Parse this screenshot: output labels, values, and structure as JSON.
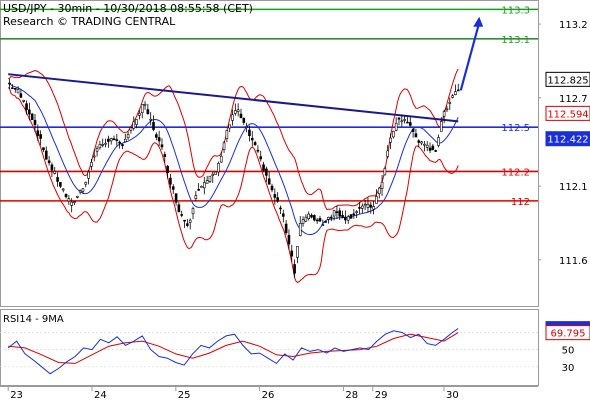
{
  "header": {
    "line1": "USD/JPY - 30min - 10/30/2018 08:55:58 (CET)",
    "line2": "Research © TRADING CENTRAL"
  },
  "chart_data": [
    {
      "type": "line",
      "instrument": "USD/JPY",
      "timeframe": "30min",
      "style": "candlestick with Bollinger Bands",
      "ylim": [
        111.3,
        113.35
      ],
      "y_ticks": [
        111.6,
        112.1,
        112.7,
        113.2
      ],
      "x_ticks": [
        {
          "label": "23",
          "day": 0
        },
        {
          "label": "24",
          "day": 1
        },
        {
          "label": "25",
          "day": 2
        },
        {
          "label": "26",
          "day": 3
        },
        {
          "label": "28",
          "day": 4
        },
        {
          "label": "29",
          "day": 4.35
        },
        {
          "label": "30",
          "day": 5.2
        }
      ],
      "x_range": [
        -0.05,
        6.25
      ],
      "price_path": [
        [
          0.0,
          112.8
        ],
        [
          0.12,
          112.74
        ],
        [
          0.3,
          112.55
        ],
        [
          0.45,
          112.3
        ],
        [
          0.6,
          112.13
        ],
        [
          0.75,
          111.97
        ],
        [
          0.9,
          112.1
        ],
        [
          1.05,
          112.35
        ],
        [
          1.2,
          112.42
        ],
        [
          1.35,
          112.38
        ],
        [
          1.5,
          112.52
        ],
        [
          1.62,
          112.66
        ],
        [
          1.75,
          112.47
        ],
        [
          1.85,
          112.33
        ],
        [
          1.95,
          112.1
        ],
        [
          2.05,
          111.92
        ],
        [
          2.15,
          111.83
        ],
        [
          2.25,
          112.08
        ],
        [
          2.38,
          112.13
        ],
        [
          2.5,
          112.22
        ],
        [
          2.6,
          112.46
        ],
        [
          2.72,
          112.63
        ],
        [
          2.85,
          112.48
        ],
        [
          2.95,
          112.36
        ],
        [
          3.05,
          112.22
        ],
        [
          3.15,
          112.06
        ],
        [
          3.25,
          111.95
        ],
        [
          3.35,
          111.72
        ],
        [
          3.42,
          111.52
        ],
        [
          3.48,
          111.85
        ],
        [
          3.6,
          111.9
        ],
        [
          3.75,
          111.85
        ],
        [
          3.9,
          111.93
        ],
        [
          4.05,
          111.88
        ],
        [
          4.2,
          111.96
        ],
        [
          4.35,
          111.96
        ],
        [
          4.45,
          112.1
        ],
        [
          4.55,
          112.4
        ],
        [
          4.65,
          112.55
        ],
        [
          4.75,
          112.55
        ],
        [
          4.85,
          112.45
        ],
        [
          4.95,
          112.37
        ],
        [
          5.1,
          112.35
        ],
        [
          5.2,
          112.6
        ],
        [
          5.3,
          112.72
        ],
        [
          5.37,
          112.76
        ]
      ],
      "bollinger_band_color": "#dd0000",
      "moving_average_color": "#1a2fd8",
      "trendline": {
        "from": [
          0.0,
          112.86
        ],
        "to": [
          5.37,
          112.54
        ],
        "color": "#1a1a8c"
      },
      "horizontal_levels": [
        {
          "value": 113.3,
          "label": "113.3",
          "color": "#1f9a1f"
        },
        {
          "value": 113.1,
          "label": "113.1",
          "color": "#1f9a1f"
        },
        {
          "value": 112.5,
          "label": "112.5",
          "color": "#1a2fd8"
        },
        {
          "value": 112.2,
          "label": "112.2",
          "color": "#dd0000"
        },
        {
          "value": 112.0,
          "label": "112",
          "color": "#dd0000"
        }
      ],
      "projection": {
        "from": [
          5.4,
          112.75
        ],
        "to": [
          5.62,
          113.25
        ],
        "color": "#1a2fd8"
      },
      "price_tags": [
        {
          "value": 112.825,
          "label": "112.825",
          "bg": "#ffffff",
          "fg": "#000000",
          "border": "#000000"
        },
        {
          "value": 112.594,
          "label": "112.594",
          "bg": "#ffffff",
          "fg": "#dd0000",
          "border": "#dd0000"
        },
        {
          "value": 112.422,
          "label": "112.422",
          "bg": "#1a2fd8",
          "fg": "#ffffff",
          "border": "#1a2fd8"
        }
      ]
    },
    {
      "type": "line",
      "title": "RSI14 - 9MA",
      "ylim": [
        10,
        95
      ],
      "y_ticks": [
        30,
        50,
        70
      ],
      "rsi_path": [
        [
          0.0,
          52
        ],
        [
          0.1,
          60
        ],
        [
          0.2,
          45
        ],
        [
          0.3,
          38
        ],
        [
          0.4,
          30
        ],
        [
          0.5,
          22
        ],
        [
          0.6,
          28
        ],
        [
          0.7,
          36
        ],
        [
          0.8,
          42
        ],
        [
          0.9,
          52
        ],
        [
          1.0,
          50
        ],
        [
          1.1,
          62
        ],
        [
          1.2,
          58
        ],
        [
          1.3,
          65
        ],
        [
          1.4,
          55
        ],
        [
          1.5,
          60
        ],
        [
          1.6,
          66
        ],
        [
          1.7,
          50
        ],
        [
          1.8,
          42
        ],
        [
          1.9,
          40
        ],
        [
          2.0,
          35
        ],
        [
          2.1,
          32
        ],
        [
          2.2,
          45
        ],
        [
          2.3,
          55
        ],
        [
          2.4,
          52
        ],
        [
          2.5,
          60
        ],
        [
          2.6,
          66
        ],
        [
          2.7,
          68
        ],
        [
          2.8,
          55
        ],
        [
          2.9,
          45
        ],
        [
          3.0,
          46
        ],
        [
          3.1,
          40
        ],
        [
          3.2,
          34
        ],
        [
          3.3,
          45
        ],
        [
          3.4,
          38
        ],
        [
          3.5,
          52
        ],
        [
          3.6,
          48
        ],
        [
          3.7,
          50
        ],
        [
          3.8,
          46
        ],
        [
          3.9,
          52
        ],
        [
          4.0,
          48
        ],
        [
          4.1,
          50
        ],
        [
          4.2,
          52
        ],
        [
          4.3,
          50
        ],
        [
          4.4,
          60
        ],
        [
          4.5,
          68
        ],
        [
          4.6,
          72
        ],
        [
          4.7,
          70
        ],
        [
          4.8,
          64
        ],
        [
          4.9,
          68
        ],
        [
          5.0,
          57
        ],
        [
          5.1,
          55
        ],
        [
          5.2,
          62
        ],
        [
          5.3,
          70
        ],
        [
          5.37,
          74.5
        ]
      ],
      "ma_path": [
        [
          0.0,
          54
        ],
        [
          0.2,
          52
        ],
        [
          0.4,
          44
        ],
        [
          0.6,
          35
        ],
        [
          0.8,
          34
        ],
        [
          1.0,
          44
        ],
        [
          1.2,
          54
        ],
        [
          1.4,
          58
        ],
        [
          1.6,
          60
        ],
        [
          1.8,
          54
        ],
        [
          2.0,
          45
        ],
        [
          2.2,
          40
        ],
        [
          2.4,
          46
        ],
        [
          2.6,
          55
        ],
        [
          2.8,
          60
        ],
        [
          3.0,
          54
        ],
        [
          3.2,
          44
        ],
        [
          3.4,
          42
        ],
        [
          3.6,
          46
        ],
        [
          3.8,
          48
        ],
        [
          4.0,
          49
        ],
        [
          4.2,
          50
        ],
        [
          4.4,
          54
        ],
        [
          4.6,
          63
        ],
        [
          4.8,
          68
        ],
        [
          5.0,
          64
        ],
        [
          5.2,
          60
        ],
        [
          5.37,
          69.8
        ]
      ],
      "rsi_color": "#1a2fd8",
      "ma_color": "#dd0000",
      "value_tags": [
        {
          "value": 74.478,
          "label": "74.478",
          "bg": "#1a2fd8",
          "fg": "#ffffff",
          "border": "#1a2fd8"
        },
        {
          "value": 69.795,
          "label": "69.795",
          "bg": "#ffffff",
          "fg": "#dd0000",
          "border": "#dd0000"
        }
      ]
    }
  ]
}
